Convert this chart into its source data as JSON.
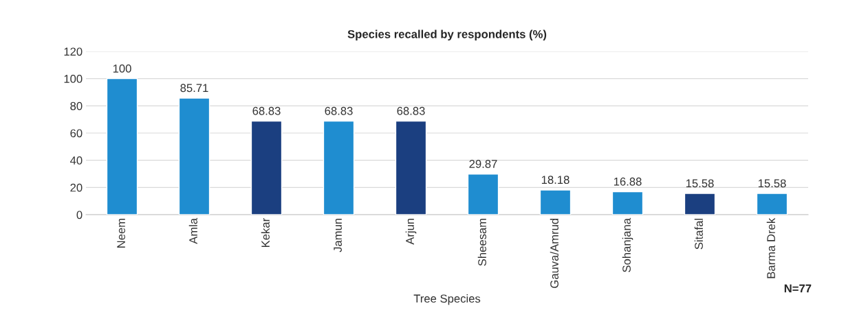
{
  "chart_data": {
    "type": "bar",
    "title": "Species recalled by respondents (%)",
    "xlabel": "Tree Species",
    "categories": [
      "Neem",
      "Amla",
      "Kekar",
      "Jamun",
      "Arjun",
      "Sheesam",
      "Gauva/Amrud",
      "Sohanjana",
      "Sitafal",
      "Barma Drek"
    ],
    "values": [
      100,
      85.71,
      68.83,
      68.83,
      68.83,
      29.87,
      18.18,
      16.88,
      15.58,
      15.58
    ],
    "colors": [
      "#1f8dd0",
      "#1f8dd0",
      "#1b3f80",
      "#1f8dd0",
      "#1b3f80",
      "#1f8dd0",
      "#1f8dd0",
      "#1f8dd0",
      "#1b3f80",
      "#1f8dd0"
    ],
    "ylim": [
      0,
      120
    ],
    "yticks": [
      0,
      20,
      40,
      60,
      80,
      100,
      120
    ],
    "grid": "y",
    "data_labels": true,
    "annotations": [
      "N=77"
    ]
  }
}
